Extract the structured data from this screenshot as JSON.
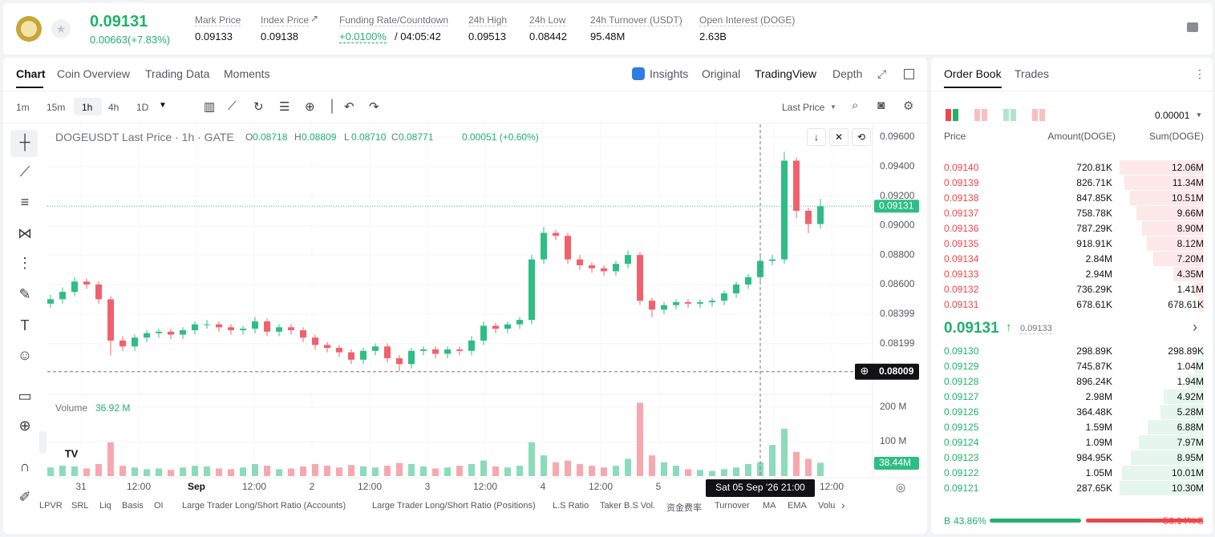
{
  "header": {
    "price": "0.09131",
    "change": "0.00663(+7.83%)",
    "stats": [
      {
        "label": "Mark Price",
        "value": "0.09133"
      },
      {
        "label": "Index Price",
        "value": "0.09138"
      },
      {
        "label": "24h High",
        "value": "0.09513"
      },
      {
        "label": "24h Low",
        "value": "0.08442"
      },
      {
        "label": "24h Turnover (USDT)",
        "value": "95.48M"
      },
      {
        "label": "Open Interest (DOGE)",
        "value": "2.63B"
      }
    ],
    "funding": {
      "label": "Funding Rate/Countdown",
      "rate": "+0.0100%",
      "countdown": "/ 04:05:42"
    }
  },
  "chart_tabs": [
    "Chart",
    "Coin Overview",
    "Trading Data",
    "Moments"
  ],
  "view_tabs": [
    "Insights",
    "Original",
    "TradingView",
    "Depth"
  ],
  "intervals": [
    "1m",
    "15m",
    "1h",
    "4h",
    "1D"
  ],
  "price_source": "Last Price",
  "legend": {
    "title": "DOGEUSDT Last Price · 1h · GATE",
    "o": "0.08718",
    "h": "0.08809",
    "l": "0.08710",
    "c": "0.08771",
    "change": "0.00051 (+0.60%)",
    "volume": "Volume",
    "volume_value": "36.92 M"
  },
  "indicators": [
    "LPVR",
    "SRL",
    "Liq",
    "Basis",
    "OI",
    "Large Trader Long/Short Ratio (Accounts)",
    "Large Trader Long/Short Ratio (Positions)",
    "L.S Ratio",
    "Taker B.S Vol.",
    "资金费率",
    "Turnover",
    "MA",
    "EMA",
    "Volu"
  ],
  "chart_data": {
    "type": "candlestick",
    "open": [
      0.0847,
      0.085,
      0.0855,
      0.0862,
      0.086,
      0.085,
      0.0822,
      0.0818,
      0.0824,
      0.0827,
      0.0828,
      0.0826,
      0.0829,
      0.0833,
      0.0833,
      0.0831,
      0.0829,
      0.083,
      0.0835,
      0.0828,
      0.0831,
      0.0829,
      0.0824,
      0.0819,
      0.0817,
      0.0814,
      0.0809,
      0.0815,
      0.0818,
      0.081,
      0.0806,
      0.0815,
      0.0816,
      0.0813,
      0.0816,
      0.0815,
      0.0822,
      0.0832,
      0.083,
      0.0833,
      0.0836,
      0.0877,
      0.0895,
      0.0893,
      0.0877,
      0.0873,
      0.0871,
      0.0869,
      0.0874,
      0.088,
      0.0849,
      0.0843,
      0.0846,
      0.0848,
      0.0847,
      0.0848,
      0.0849,
      0.0854,
      0.086,
      0.0865,
      0.0876,
      0.0877,
      0.0944,
      0.091,
      0.0901
    ],
    "high": [
      0.0853,
      0.0858,
      0.0865,
      0.0864,
      0.0862,
      0.0852,
      0.0825,
      0.0826,
      0.0829,
      0.083,
      0.083,
      0.0831,
      0.0835,
      0.0836,
      0.0835,
      0.0833,
      0.0832,
      0.0838,
      0.0837,
      0.0833,
      0.0833,
      0.0831,
      0.0826,
      0.0821,
      0.0819,
      0.0816,
      0.0817,
      0.082,
      0.082,
      0.0812,
      0.0817,
      0.0818,
      0.0818,
      0.0818,
      0.0818,
      0.0825,
      0.0835,
      0.0834,
      0.0835,
      0.0838,
      0.088,
      0.0899,
      0.0897,
      0.0895,
      0.088,
      0.0875,
      0.0873,
      0.0876,
      0.0883,
      0.0882,
      0.0851,
      0.0848,
      0.085,
      0.085,
      0.085,
      0.0851,
      0.0856,
      0.0862,
      0.0867,
      0.0879,
      0.088,
      0.095,
      0.0946,
      0.0912,
      0.0918
    ],
    "low": [
      0.0844,
      0.0847,
      0.0852,
      0.0857,
      0.0847,
      0.0812,
      0.0815,
      0.0815,
      0.0821,
      0.0824,
      0.0823,
      0.0823,
      0.0826,
      0.083,
      0.0828,
      0.0826,
      0.0826,
      0.0827,
      0.0825,
      0.0825,
      0.0826,
      0.0821,
      0.0816,
      0.0814,
      0.0811,
      0.0806,
      0.0806,
      0.0812,
      0.0807,
      0.0801,
      0.0803,
      0.0812,
      0.081,
      0.081,
      0.0812,
      0.0812,
      0.0819,
      0.0827,
      0.0827,
      0.083,
      0.0833,
      0.0874,
      0.089,
      0.0874,
      0.087,
      0.0868,
      0.0866,
      0.0866,
      0.0871,
      0.0846,
      0.0838,
      0.084,
      0.0843,
      0.0844,
      0.0844,
      0.0845,
      0.0846,
      0.0851,
      0.0857,
      0.0862,
      0.0873,
      0.0874,
      0.0905,
      0.0895,
      0.0898
    ],
    "close": [
      0.085,
      0.0855,
      0.0862,
      0.086,
      0.085,
      0.0822,
      0.0818,
      0.0824,
      0.0827,
      0.0828,
      0.0826,
      0.0829,
      0.0833,
      0.0833,
      0.0831,
      0.0829,
      0.083,
      0.0835,
      0.0828,
      0.0831,
      0.0829,
      0.0824,
      0.0819,
      0.0817,
      0.0814,
      0.0809,
      0.0815,
      0.0818,
      0.081,
      0.0806,
      0.0815,
      0.0816,
      0.0813,
      0.0816,
      0.0815,
      0.0822,
      0.0832,
      0.083,
      0.0833,
      0.0836,
      0.0877,
      0.0895,
      0.0893,
      0.0877,
      0.0873,
      0.0871,
      0.0869,
      0.0874,
      0.088,
      0.0849,
      0.0843,
      0.0846,
      0.0848,
      0.0847,
      0.0848,
      0.0849,
      0.0854,
      0.086,
      0.0865,
      0.0876,
      0.0877,
      0.0944,
      0.091,
      0.0901,
      0.09131
    ],
    "volume": [
      25,
      30,
      28,
      22,
      35,
      98,
      30,
      25,
      20,
      22,
      18,
      25,
      30,
      28,
      22,
      20,
      25,
      35,
      30,
      20,
      22,
      28,
      35,
      30,
      25,
      32,
      28,
      25,
      30,
      38,
      35,
      28,
      22,
      25,
      30,
      35,
      45,
      28,
      25,
      30,
      98,
      60,
      40,
      45,
      35,
      30,
      25,
      30,
      50,
      212,
      60,
      40,
      30,
      20,
      18,
      15,
      20,
      25,
      35,
      40,
      90,
      137,
      70,
      50,
      38.44
    ],
    "ylim": [
      0.07866,
      0.09687
    ],
    "yticks": [
      {
        "value": 0.096,
        "label": "0.09600"
      },
      {
        "value": 0.094,
        "label": "0.09400"
      },
      {
        "value": 0.092,
        "label": "0.09200"
      },
      {
        "value": 0.09,
        "label": "0.09000"
      },
      {
        "value": 0.088,
        "label": "0.08800"
      },
      {
        "value": 0.086,
        "label": "0.08600"
      },
      {
        "value": 0.08399,
        "label": "0.08399"
      },
      {
        "value": 0.08199,
        "label": "0.08199"
      }
    ],
    "volume_ylim": [
      0,
      225
    ],
    "volume_yticks": [
      {
        "value": 200,
        "label": "200 M"
      },
      {
        "value": 100,
        "label": "100 M"
      }
    ],
    "x_labels": [
      "31",
      "12:00",
      "Sep",
      "12:00",
      "2",
      "12:00",
      "3",
      "12:00",
      "4",
      "12:00",
      "5",
      null,
      null,
      "12:00"
    ],
    "last_price": 0.09131,
    "crosshair_price": 0.08009,
    "crosshair_time": "Sat 05 Sep '26  21:00",
    "volume_badge": "38.44M",
    "grid": true
  },
  "order_book": {
    "tabs": [
      "Order Book",
      "Trades"
    ],
    "precision": "0.00001",
    "columns": [
      "Price",
      "Amount(DOGE)",
      "Sum(DOGE)"
    ],
    "asks": [
      [
        "0.09140",
        "720.81K",
        "12.06M"
      ],
      [
        "0.09139",
        "826.71K",
        "11.34M"
      ],
      [
        "0.09138",
        "847.85K",
        "10.51M"
      ],
      [
        "0.09137",
        "758.78K",
        "9.66M"
      ],
      [
        "0.09136",
        "787.29K",
        "8.90M"
      ],
      [
        "0.09135",
        "918.91K",
        "8.12M"
      ],
      [
        "0.09134",
        "2.84M",
        "7.20M"
      ],
      [
        "0.09133",
        "2.94M",
        "4.35M"
      ],
      [
        "0.09132",
        "736.29K",
        "1.41M"
      ],
      [
        "0.09131",
        "678.61K",
        "678.61K"
      ]
    ],
    "mid_price": "0.09131",
    "mark_price": "0.09133",
    "bids": [
      [
        "0.09130",
        "298.89K",
        "298.89K"
      ],
      [
        "0.09129",
        "745.87K",
        "1.04M"
      ],
      [
        "0.09128",
        "896.24K",
        "1.94M"
      ],
      [
        "0.09127",
        "2.98M",
        "4.92M"
      ],
      [
        "0.09126",
        "364.48K",
        "5.28M"
      ],
      [
        "0.09125",
        "1.59M",
        "6.88M"
      ],
      [
        "0.09124",
        "1.09M",
        "7.97M"
      ],
      [
        "0.09123",
        "984.95K",
        "8.95M"
      ],
      [
        "0.09122",
        "1.05M",
        "10.01M"
      ],
      [
        "0.09121",
        "287.65K",
        "10.30M"
      ]
    ],
    "buy": {
      "label": "B",
      "value": "43.86%"
    },
    "sell": {
      "label": "S",
      "value": "56.14%"
    }
  }
}
